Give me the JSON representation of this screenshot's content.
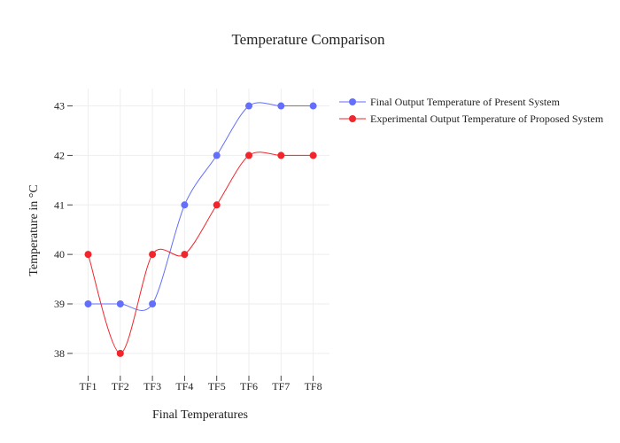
{
  "chart_data": {
    "type": "line",
    "title": "Temperature Comparison",
    "xlabel": "Final Temperatures",
    "ylabel": "Temperature in °C",
    "categories": [
      "TF1",
      "TF2",
      "TF3",
      "TF4",
      "TF5",
      "TF6",
      "TF7",
      "TF8"
    ],
    "ylim": [
      37.55,
      43.35
    ],
    "yticks": [
      38,
      39,
      40,
      41,
      42,
      43
    ],
    "grid": true,
    "legend_position": "top-right",
    "series": [
      {
        "name": "Final Output Temperature of Present System",
        "color": "#636efa",
        "values": [
          39,
          39,
          39,
          41,
          42,
          43,
          43,
          43
        ]
      },
      {
        "name": "Experimental Output Temperature of Proposed System",
        "color": "#f0262c",
        "values": [
          40,
          38,
          40,
          40,
          41,
          42,
          42,
          42
        ]
      }
    ]
  }
}
